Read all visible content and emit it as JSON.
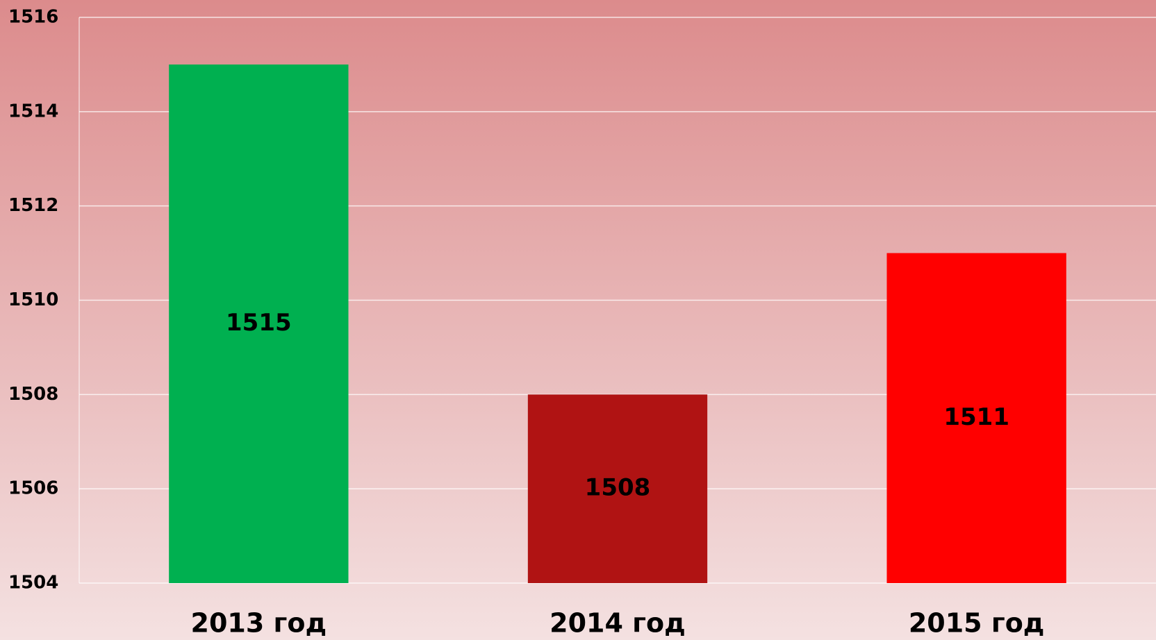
{
  "chart_data": {
    "type": "bar",
    "categories": [
      "2013 год",
      "2014 год",
      "2015 год"
    ],
    "values": [
      1515,
      1508,
      1511
    ],
    "colors": [
      "#00b050",
      "#b01313",
      "#ff0000"
    ],
    "ylim": [
      1504,
      1516
    ],
    "yticks": [
      1504,
      1506,
      1508,
      1510,
      1512,
      1514,
      1516
    ],
    "grid": true
  }
}
